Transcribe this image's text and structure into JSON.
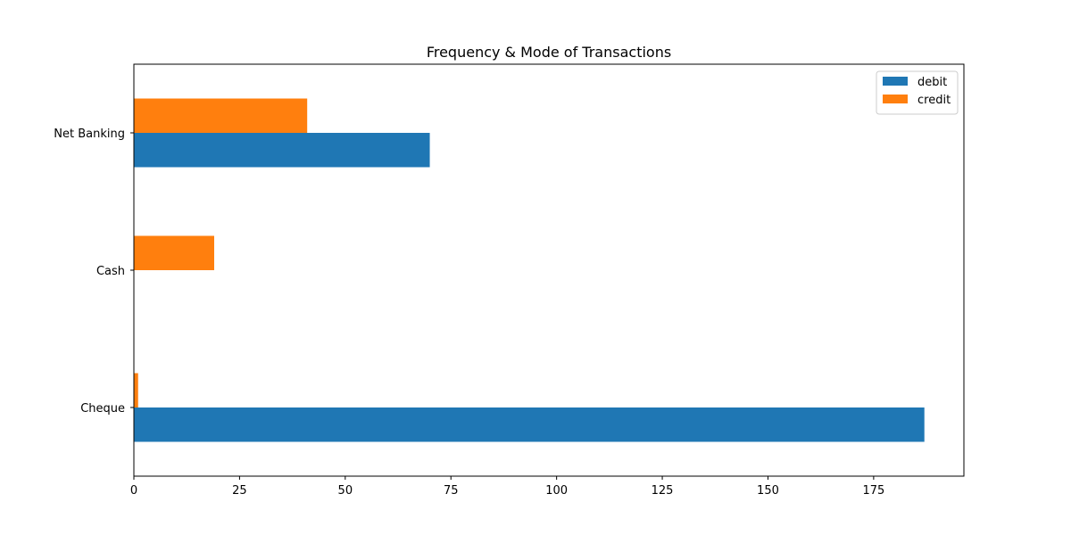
{
  "chart_data": {
    "type": "bar",
    "orientation": "horizontal",
    "title": "Frequency & Mode of Transactions",
    "xlabel": "",
    "ylabel": "",
    "categories": [
      "Cheque",
      "Cash",
      "Net Banking"
    ],
    "series": [
      {
        "name": "debit",
        "color": "#1f77b4",
        "values": [
          187,
          0,
          70
        ]
      },
      {
        "name": "credit",
        "color": "#ff7f0e",
        "values": [
          1,
          19,
          41
        ]
      }
    ],
    "xlim": [
      0,
      196.35
    ],
    "xticks": [
      0,
      25,
      50,
      75,
      100,
      125,
      150,
      175
    ],
    "grid": false,
    "legend_position": "top-right"
  }
}
